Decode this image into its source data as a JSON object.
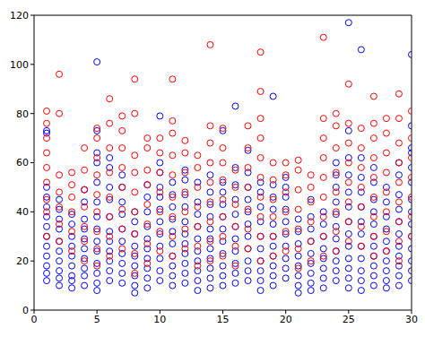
{
  "chart_data": {
    "type": "scatter",
    "marker": "circle",
    "grid": false,
    "xlim": [
      0,
      30
    ],
    "xticks": [
      0,
      5,
      10,
      15,
      20,
      25,
      30
    ],
    "ylim": [
      0,
      120
    ],
    "yticks": [
      0,
      20,
      40,
      60,
      80,
      100,
      120
    ],
    "x": [
      1,
      2,
      3,
      4,
      5,
      6,
      7,
      8,
      9,
      10,
      11,
      12,
      13,
      14,
      15,
      16,
      17,
      18,
      19,
      20,
      21,
      22,
      23,
      24,
      25,
      26,
      27,
      28,
      29,
      30
    ],
    "series": [
      {
        "color": "#0000ff",
        "values": [
          [
            12,
            15,
            18,
            22,
            26,
            30,
            34,
            38,
            42,
            46,
            50,
            72,
            73
          ],
          [
            10,
            13,
            16,
            20,
            24,
            28,
            33,
            37,
            41,
            45
          ],
          [
            9,
            12,
            14,
            18,
            22,
            26,
            30,
            35,
            39
          ],
          [
            10,
            14,
            17,
            21,
            25,
            29,
            33,
            37,
            44,
            49
          ],
          [
            8,
            11,
            15,
            19,
            24,
            28,
            33,
            38,
            44,
            52,
            60,
            64,
            73,
            101
          ],
          [
            12,
            16,
            20,
            24,
            28,
            32,
            38,
            45,
            50,
            58,
            62
          ],
          [
            11,
            15,
            19,
            23,
            28,
            33,
            39,
            44,
            50,
            55
          ],
          [
            7,
            10,
            14,
            18,
            22,
            26,
            31,
            36,
            40
          ],
          [
            9,
            13,
            17,
            21,
            25,
            29,
            34,
            40,
            46,
            51
          ],
          [
            12,
            16,
            21,
            26,
            31,
            36,
            41,
            46,
            50,
            56,
            60,
            79
          ],
          [
            10,
            14,
            18,
            22,
            27,
            32,
            37,
            42,
            47,
            52
          ],
          [
            11,
            15,
            19,
            23,
            27,
            31,
            36,
            42,
            47,
            53,
            57
          ],
          [
            8,
            12,
            16,
            20,
            24,
            29,
            34,
            39,
            44,
            52
          ],
          [
            9,
            13,
            17,
            21,
            25,
            29,
            33,
            38,
            43,
            48,
            55
          ],
          [
            10,
            14,
            18,
            23,
            28,
            33,
            38,
            43,
            48,
            52,
            73
          ],
          [
            11,
            15,
            19,
            24,
            29,
            34,
            39,
            45,
            51,
            58,
            83
          ],
          [
            12,
            16,
            20,
            25,
            30,
            35,
            40,
            45,
            50,
            56,
            65
          ],
          [
            8,
            12,
            16,
            20,
            25,
            30,
            36,
            42,
            48,
            52
          ],
          [
            10,
            14,
            18,
            22,
            26,
            30,
            35,
            41,
            46,
            51,
            87
          ],
          [
            13,
            17,
            21,
            26,
            31,
            36,
            41,
            46,
            50,
            54
          ],
          [
            7,
            10,
            14,
            18,
            22,
            27,
            32,
            37
          ],
          [
            8,
            11,
            15,
            19,
            23,
            28,
            33,
            38,
            45
          ],
          [
            9,
            13,
            17,
            21,
            25,
            30,
            35,
            40
          ],
          [
            12,
            16,
            20,
            24,
            29,
            34,
            39,
            44,
            50,
            55,
            60
          ],
          [
            9,
            13,
            17,
            21,
            26,
            31,
            36,
            42,
            48,
            55,
            62,
            73,
            117
          ],
          [
            8,
            12,
            16,
            21,
            26,
            31,
            36,
            42,
            48,
            54,
            62,
            106
          ],
          [
            10,
            14,
            18,
            22,
            26,
            30,
            35,
            40,
            45,
            52,
            58
          ],
          [
            9,
            12,
            16,
            20,
            24,
            28,
            33,
            38,
            44,
            50
          ],
          [
            10,
            14,
            18,
            22,
            26,
            31,
            36,
            41,
            47,
            55,
            60
          ],
          [
            12,
            16,
            20,
            25,
            30,
            35,
            40,
            45,
            52,
            58,
            64,
            66,
            75,
            104
          ]
        ]
      },
      {
        "color": "#ff0000",
        "values": [
          [
            30,
            40,
            45,
            52,
            58,
            64,
            70,
            76,
            81
          ],
          [
            28,
            35,
            42,
            48,
            55,
            80,
            96
          ],
          [
            24,
            32,
            40,
            46,
            51,
            56
          ],
          [
            20,
            28,
            34,
            42,
            49,
            57,
            66
          ],
          [
            18,
            25,
            32,
            40,
            47,
            55,
            62,
            70,
            74
          ],
          [
            22,
            30,
            38,
            46,
            56,
            66,
            76,
            86
          ],
          [
            25,
            33,
            41,
            50,
            58,
            66,
            73,
            79
          ],
          [
            15,
            23,
            31,
            40,
            48,
            56,
            63,
            80,
            94
          ],
          [
            19,
            27,
            35,
            43,
            51,
            57,
            66,
            70
          ],
          [
            24,
            32,
            40,
            48,
            56,
            64,
            70
          ],
          [
            22,
            30,
            38,
            46,
            55,
            63,
            72,
            77,
            94
          ],
          [
            25,
            33,
            40,
            48,
            56,
            64,
            69
          ],
          [
            18,
            26,
            34,
            42,
            50,
            58,
            63
          ],
          [
            20,
            28,
            36,
            44,
            52,
            60,
            68,
            75,
            108
          ],
          [
            22,
            30,
            38,
            45,
            53,
            60,
            66,
            74
          ],
          [
            18,
            26,
            34,
            43,
            50,
            57
          ],
          [
            25,
            33,
            41,
            50,
            58,
            66,
            75
          ],
          [
            20,
            30,
            38,
            46,
            54,
            62,
            70,
            78,
            89,
            105
          ],
          [
            22,
            30,
            38,
            45,
            53,
            60
          ],
          [
            24,
            32,
            40,
            48,
            55,
            60
          ],
          [
            17,
            25,
            33,
            41,
            49,
            57,
            61
          ],
          [
            20,
            28,
            36,
            44,
            50,
            55
          ],
          [
            22,
            30,
            38,
            46,
            54,
            62,
            70,
            78,
            111
          ],
          [
            24,
            32,
            40,
            48,
            56,
            66,
            75,
            80
          ],
          [
            28,
            36,
            44,
            52,
            60,
            68,
            76,
            92
          ],
          [
            26,
            34,
            42,
            50,
            58,
            66,
            74
          ],
          [
            22,
            30,
            38,
            46,
            54,
            62,
            70,
            76,
            87
          ],
          [
            24,
            32,
            40,
            48,
            56,
            64,
            72,
            78
          ],
          [
            20,
            28,
            36,
            44,
            52,
            60,
            68,
            78,
            88
          ],
          [
            30,
            38,
            46,
            54,
            62,
            70,
            81
          ]
        ]
      }
    ]
  }
}
